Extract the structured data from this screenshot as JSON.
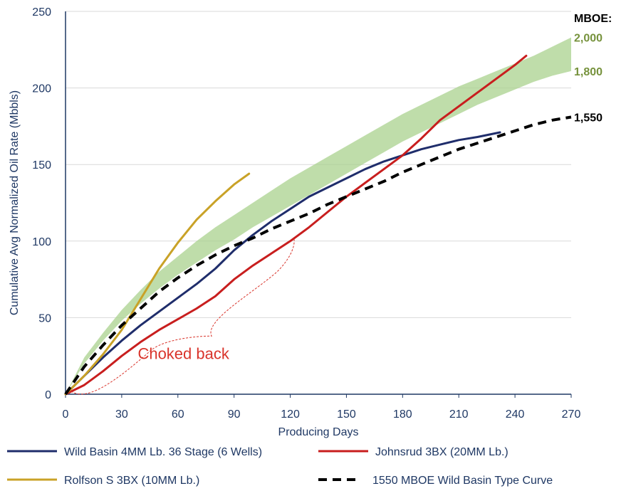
{
  "chart_data": {
    "type": "line",
    "xlabel": "Producing Days",
    "ylabel": "Cumulative Avg Normalized Oil Rate (Mbbls)",
    "xlim": [
      0,
      270
    ],
    "ylim": [
      0,
      250
    ],
    "x_ticks": [
      0,
      30,
      60,
      90,
      120,
      150,
      180,
      210,
      240,
      270
    ],
    "y_ticks": [
      0,
      50,
      100,
      150,
      200,
      250
    ],
    "grid": "horizontal",
    "legend_position": "bottom",
    "series": [
      {
        "name": "Wild Basin 4MM Lb. 36 Stage (6 Wells)",
        "color": "#1f2d6b",
        "dash": "solid",
        "x": [
          0,
          10,
          20,
          30,
          40,
          50,
          60,
          70,
          80,
          90,
          100,
          110,
          120,
          130,
          140,
          150,
          160,
          170,
          180,
          190,
          200,
          210,
          220,
          232
        ],
        "y": [
          0,
          12,
          24,
          35,
          45,
          54,
          63,
          72,
          82,
          94,
          104,
          113,
          121,
          129,
          135,
          141,
          147,
          152,
          156,
          160,
          163,
          166,
          168,
          171
        ]
      },
      {
        "name": "Johnsrud 3BX (20MM Lb.)",
        "color": "#c81e1e",
        "dash": "solid",
        "x": [
          0,
          10,
          20,
          30,
          40,
          50,
          60,
          70,
          80,
          90,
          100,
          110,
          120,
          130,
          140,
          150,
          160,
          170,
          180,
          190,
          200,
          210,
          220,
          230,
          240,
          246
        ],
        "y": [
          0,
          6,
          15,
          25,
          34,
          42,
          49,
          56,
          64,
          75,
          84,
          92,
          100,
          109,
          119,
          129,
          138,
          147,
          156,
          167,
          179,
          188,
          197,
          206,
          215,
          221
        ]
      },
      {
        "name": "Rolfson S 3BX (10MM Lb.)",
        "color": "#c9a227",
        "dash": "solid",
        "x": [
          0,
          10,
          20,
          30,
          40,
          50,
          60,
          70,
          80,
          90,
          98
        ],
        "y": [
          0,
          12,
          26,
          42,
          62,
          82,
          99,
          114,
          126,
          137,
          144
        ]
      },
      {
        "name": "1550 MBOE Wild Basin Type Curve",
        "color": "#000000",
        "dash": "dashed",
        "x": [
          0,
          10,
          20,
          30,
          40,
          50,
          60,
          70,
          80,
          90,
          100,
          110,
          120,
          130,
          140,
          150,
          160,
          170,
          180,
          190,
          200,
          210,
          220,
          230,
          240,
          250,
          260,
          270
        ],
        "y": [
          0,
          18,
          32,
          45,
          56,
          67,
          76,
          84,
          91,
          97,
          102,
          108,
          113,
          118,
          124,
          129,
          134,
          139,
          145,
          150,
          155,
          160,
          164,
          168,
          172,
          176,
          179,
          181
        ]
      }
    ],
    "band": {
      "color": "#a9d18e",
      "x": [
        0,
        10,
        20,
        30,
        40,
        50,
        60,
        70,
        80,
        90,
        100,
        110,
        120,
        130,
        140,
        150,
        160,
        170,
        180,
        190,
        200,
        210,
        220,
        230,
        240,
        250,
        260,
        270
      ],
      "upper": [
        0,
        24,
        40,
        55,
        68,
        80,
        90,
        100,
        109,
        117,
        125,
        133,
        141,
        148,
        155,
        162,
        169,
        176,
        183,
        189,
        195,
        201,
        206,
        211,
        216,
        221,
        227,
        233
      ],
      "lower": [
        0,
        20,
        35,
        48,
        59,
        69,
        78,
        86,
        94,
        101,
        109,
        116,
        123,
        130,
        137,
        144,
        151,
        158,
        165,
        171,
        177,
        183,
        189,
        194,
        199,
        204,
        208,
        211
      ]
    },
    "mboe_labels": {
      "heading": "MBOE:",
      "items": [
        {
          "text": "2,000",
          "y": 233,
          "color": "#76923c"
        },
        {
          "text": "1,800",
          "y": 211,
          "color": "#76923c"
        },
        {
          "text": "1,550",
          "y": 181,
          "color": "#000000"
        }
      ]
    },
    "annotation": {
      "text": "Choked back",
      "color": "#d9342b"
    }
  }
}
